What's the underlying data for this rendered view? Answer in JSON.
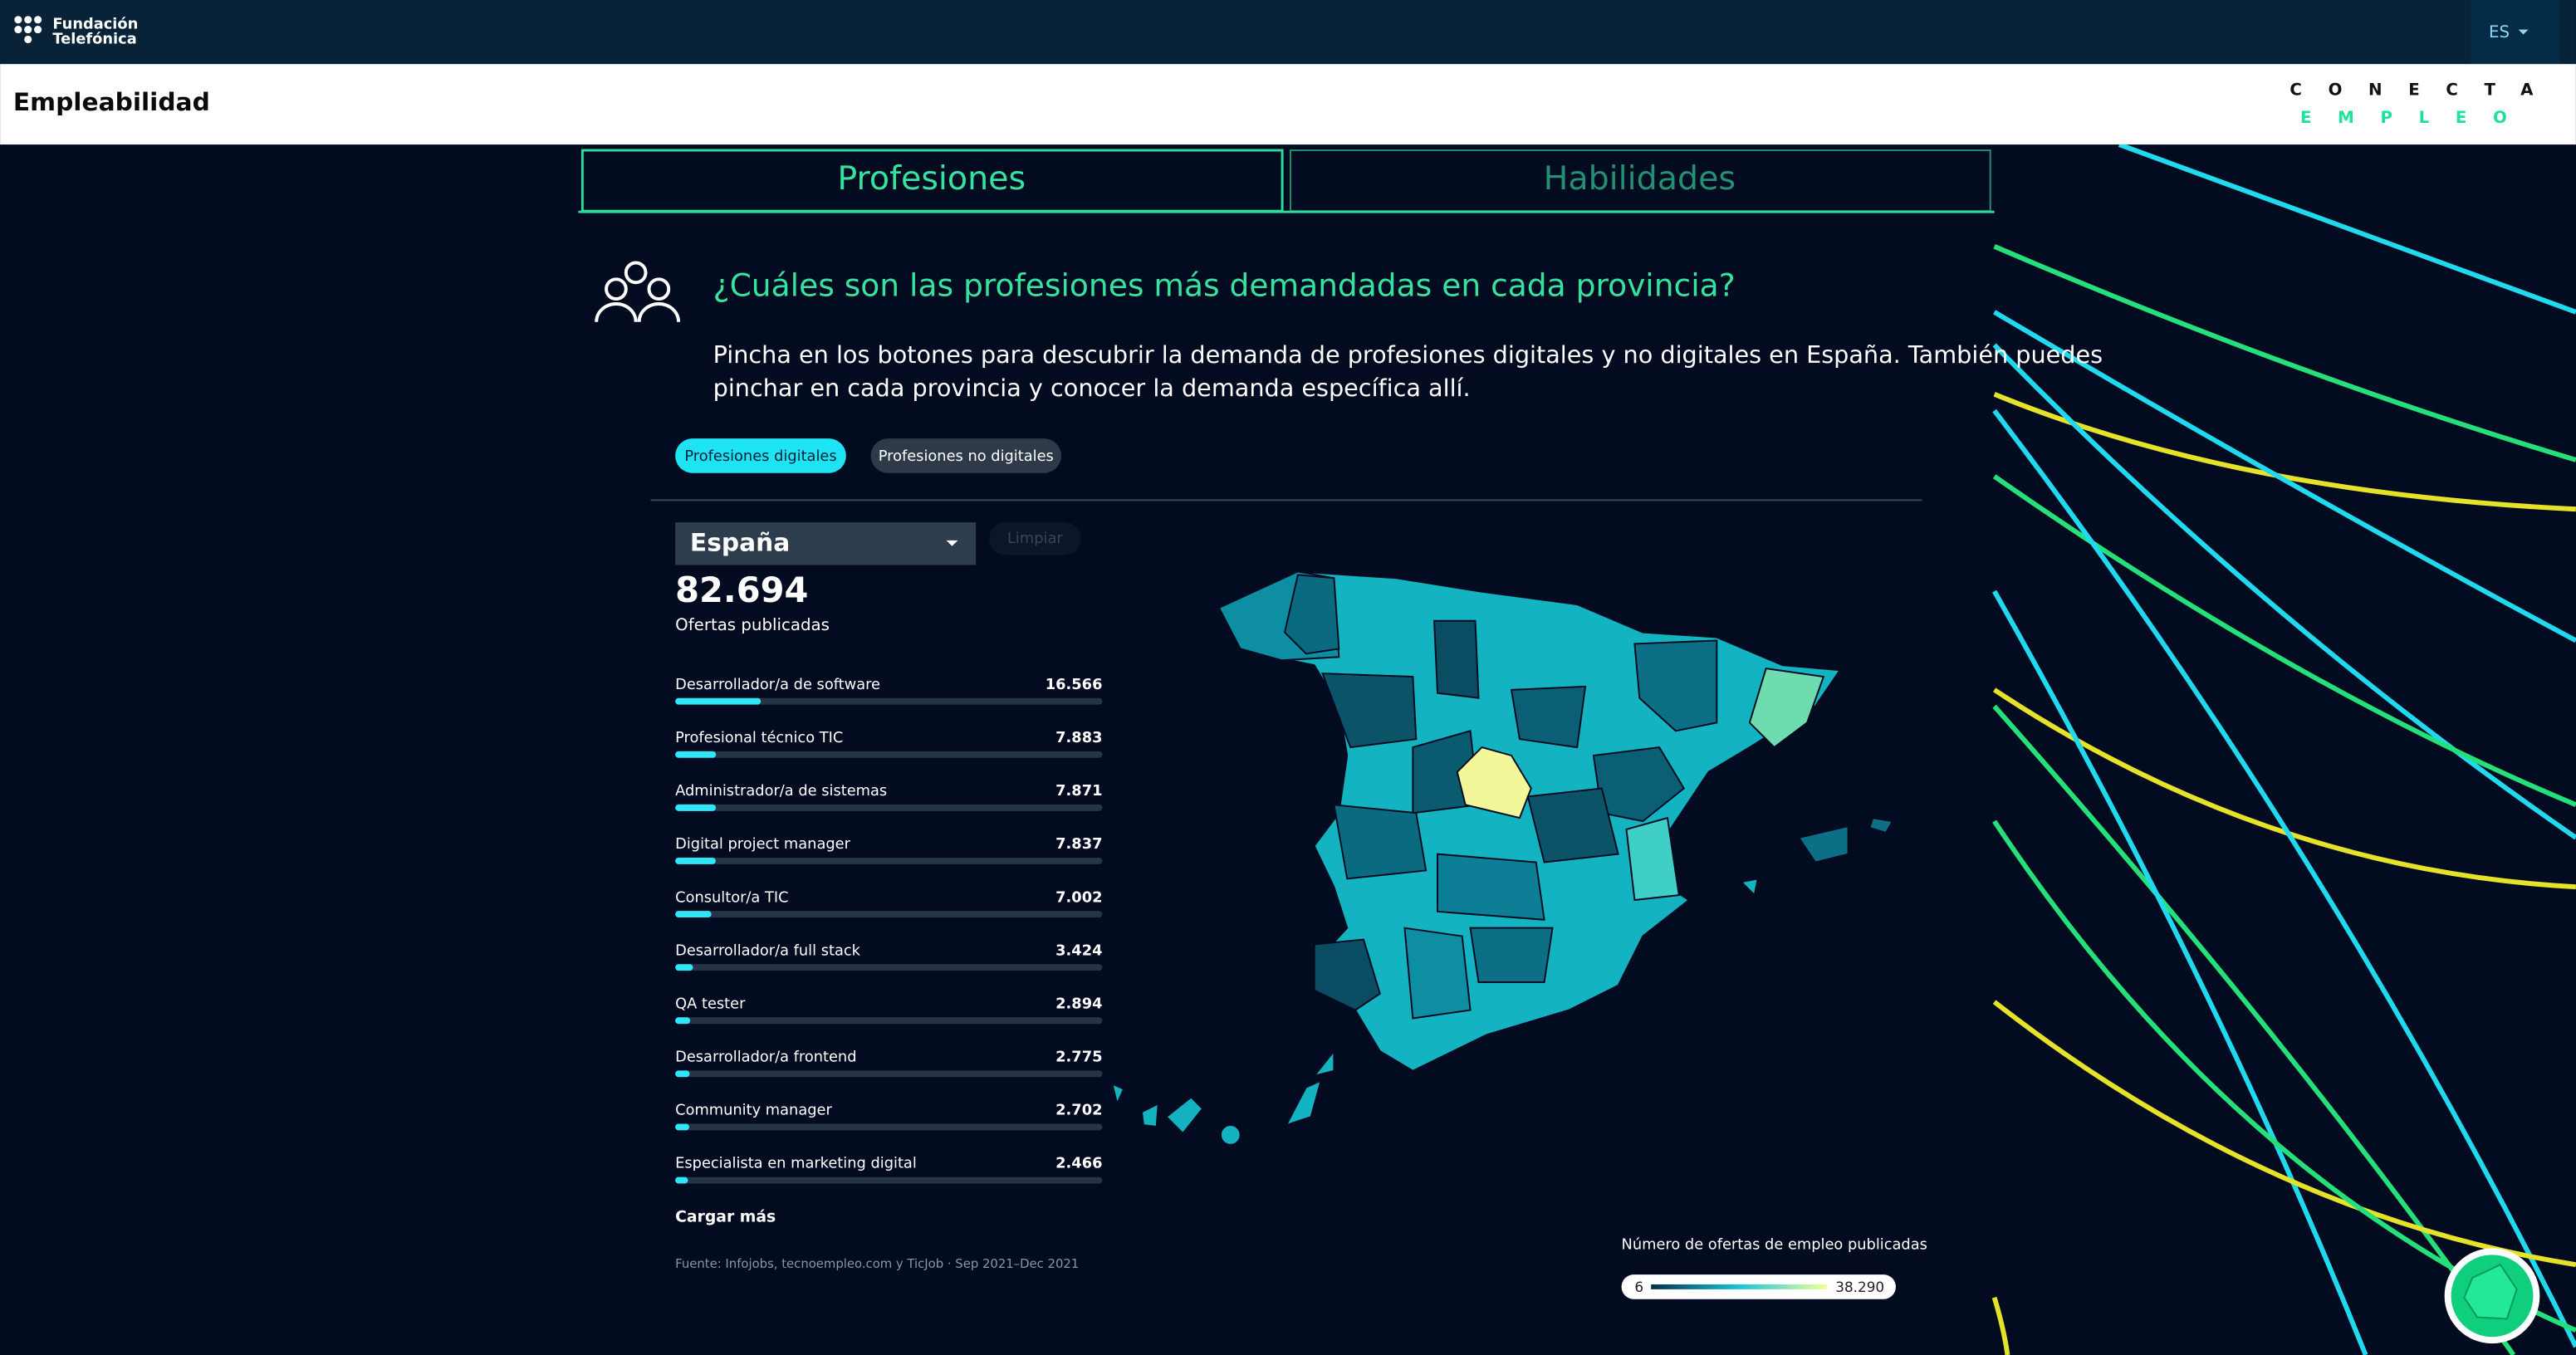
{
  "header": {
    "brand_line1": "Fundación",
    "brand_line2": "Telefónica",
    "language": "ES"
  },
  "subheader": {
    "title": "Empleabilidad",
    "logo_line1": "CONECTA",
    "logo_line2": "EMPLEO"
  },
  "tabs": [
    "Profesiones",
    "Habilidades"
  ],
  "question": "¿Cuáles son las profesiones más demandadas en cada provincia?",
  "description": [
    "Pincha en los botones para descubrir la demanda de profesiones digitales y no digitales en España. También puedes",
    "pinchar en cada provincia y conocer la demanda específica allí."
  ],
  "filters": [
    "Profesiones digitales",
    "Profesiones no digitales"
  ],
  "region_select": "España",
  "clear_button": "Limpiar",
  "total": {
    "value": 82694,
    "label": "82.694"
  },
  "total_caption": "Ofertas publicadas",
  "professions": [
    {
      "name": "Desarrollador/a de software",
      "value": 16566,
      "label": "16.566"
    },
    {
      "name": "Profesional técnico TIC",
      "value": 7883,
      "label": "7.883"
    },
    {
      "name": "Administrador/a de sistemas",
      "value": 7871,
      "label": "7.871"
    },
    {
      "name": "Digital project manager",
      "value": 7837,
      "label": "7.837"
    },
    {
      "name": "Consultor/a TIC",
      "value": 7002,
      "label": "7.002"
    },
    {
      "name": "Desarrollador/a full stack",
      "value": 3424,
      "label": "3.424"
    },
    {
      "name": "QA tester",
      "value": 2894,
      "label": "2.894"
    },
    {
      "name": "Desarrollador/a frontend",
      "value": 2775,
      "label": "2.775"
    },
    {
      "name": "Community manager",
      "value": 2702,
      "label": "2.702"
    },
    {
      "name": "Especialista en marketing digital",
      "value": 2466,
      "label": "2.466"
    }
  ],
  "load_more": "Cargar más",
  "source": "Fuente: Infojobs, tecnoempleo.com y TicJob · Sep 2021–Dec 2021",
  "legend": {
    "title": "Número de ofertas de empleo publicadas",
    "min": 6,
    "max": {
      "value": 38290,
      "label": "38.290"
    }
  }
}
